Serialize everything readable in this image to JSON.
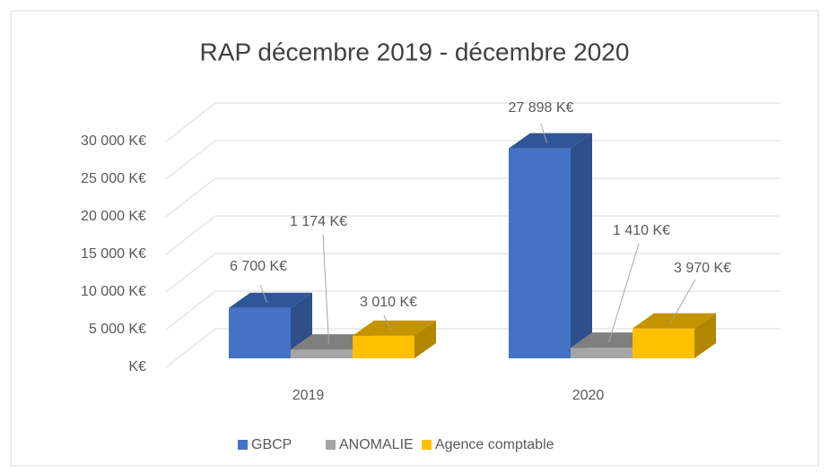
{
  "chart_data": {
    "type": "bar3d",
    "title": "RAP décembre 2019 - décembre 2020",
    "categories": [
      "2019",
      "2020"
    ],
    "series": [
      {
        "name": "GBCP",
        "color": "#4472c4",
        "values": [
          6700,
          27898
        ],
        "value_labels": [
          "6 700 K€",
          "27 898 K€"
        ]
      },
      {
        "name": "ANOMALIE",
        "color": "#a5a5a5",
        "values": [
          1174,
          1410
        ],
        "value_labels": [
          "1 174 K€",
          "1 410 K€"
        ]
      },
      {
        "name": "Agence comptable",
        "color": "#ffc000",
        "values": [
          3010,
          3970
        ],
        "value_labels": [
          "3 010 K€",
          "3 970 K€"
        ]
      }
    ],
    "ylim": [
      0,
      30000
    ],
    "yticks": [
      {
        "value": 0,
        "label": "K€"
      },
      {
        "value": 5000,
        "label": "5 000 K€"
      },
      {
        "value": 10000,
        "label": "10 000 K€"
      },
      {
        "value": 15000,
        "label": "15 000 K€"
      },
      {
        "value": 20000,
        "label": "20 000 K€"
      },
      {
        "value": 25000,
        "label": "25 000 K€"
      },
      {
        "value": 30000,
        "label": "30 000 K€"
      }
    ],
    "grid": true,
    "legend": "bottom"
  }
}
